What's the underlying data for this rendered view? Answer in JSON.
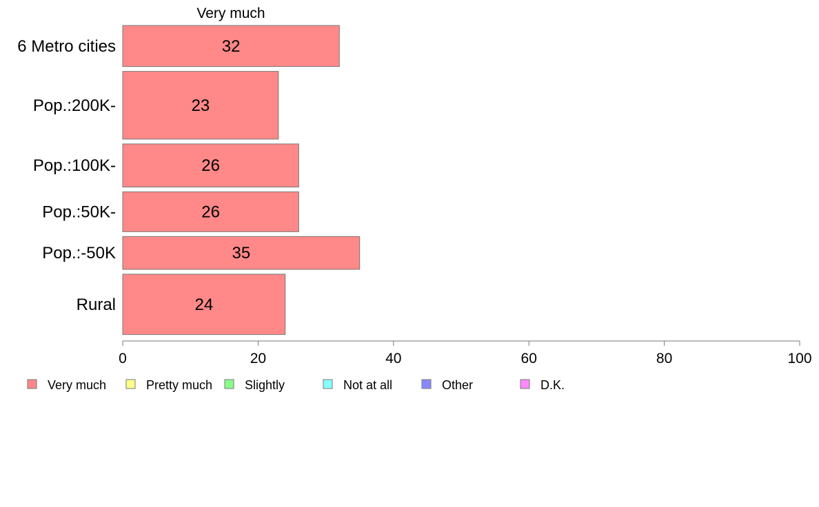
{
  "chart_data": {
    "type": "bar",
    "orientation": "horizontal",
    "series_header": "Very much",
    "categories": [
      "6 Metro cities",
      "Pop.:200K-",
      "Pop.:100K-",
      "Pop.:50K-",
      "Pop.:-50K",
      "Rural"
    ],
    "relative_bar_widths": [
      1.0,
      1.65,
      1.05,
      0.97,
      0.8,
      1.47
    ],
    "series": [
      {
        "name": "Very much",
        "color": "#ff8888",
        "values": [
          32,
          23,
          26,
          26,
          35,
          24
        ]
      }
    ],
    "xlim": [
      0,
      100
    ],
    "x_ticks": [
      0,
      20,
      40,
      60,
      80,
      100
    ],
    "grid": false,
    "legend_position": "bottom-left",
    "legend": [
      {
        "label": "Very much",
        "color": "#ff8888"
      },
      {
        "label": "Pretty much",
        "color": "#ffff88"
      },
      {
        "label": "Slightly",
        "color": "#88ff88"
      },
      {
        "label": "Not at all",
        "color": "#88ffff"
      },
      {
        "label": "Other",
        "color": "#8888ff"
      },
      {
        "label": "D.K.",
        "color": "#ff88ff"
      }
    ]
  }
}
